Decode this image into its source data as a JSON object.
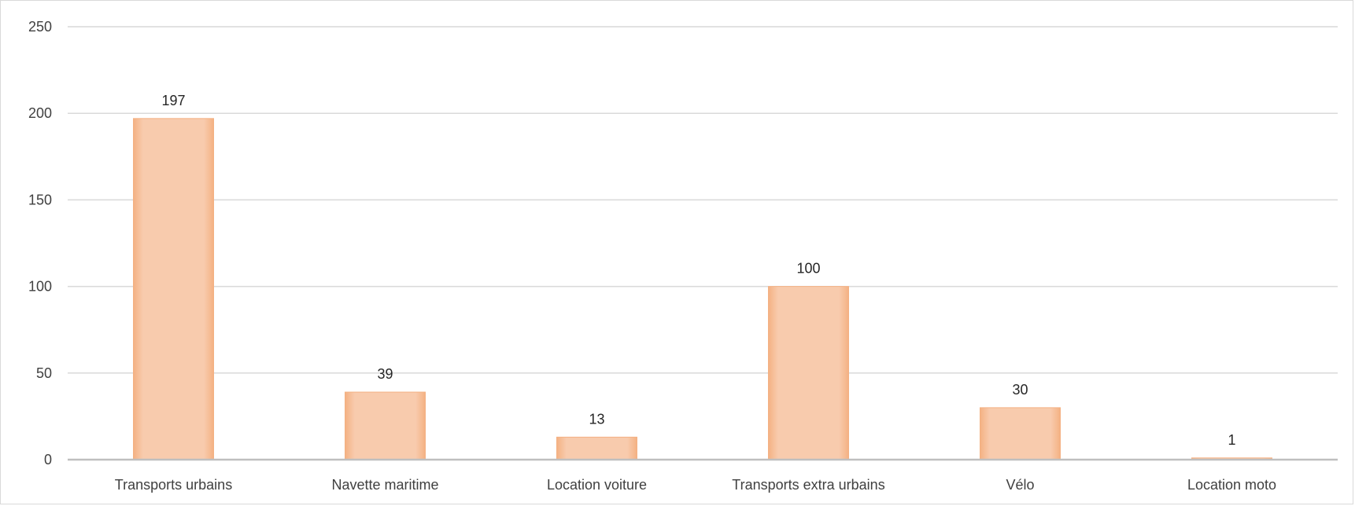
{
  "chart_data": {
    "type": "bar",
    "title": "",
    "xlabel": "",
    "ylabel": "",
    "categories": [
      "Transports urbains",
      "Navette maritime",
      "Location voiture",
      "Transports extra urbains",
      "Vélo",
      "Location moto"
    ],
    "values": [
      197,
      39,
      13,
      100,
      30,
      1
    ],
    "data_labels": [
      "197",
      "39",
      "13",
      "100",
      "30",
      "1"
    ],
    "ylim": [
      0,
      250
    ],
    "yticks": [
      0,
      50,
      100,
      150,
      200,
      250
    ],
    "ytick_labels": [
      "0",
      "50",
      "100",
      "150",
      "200",
      "250"
    ],
    "grid": true,
    "legend": "none",
    "colors": {
      "bar_fill": "#F8CBAD",
      "bar_edge": "#F4B183",
      "grid": "#D9D9D9",
      "axis": "#BFBFBF",
      "text": "#404040"
    }
  }
}
